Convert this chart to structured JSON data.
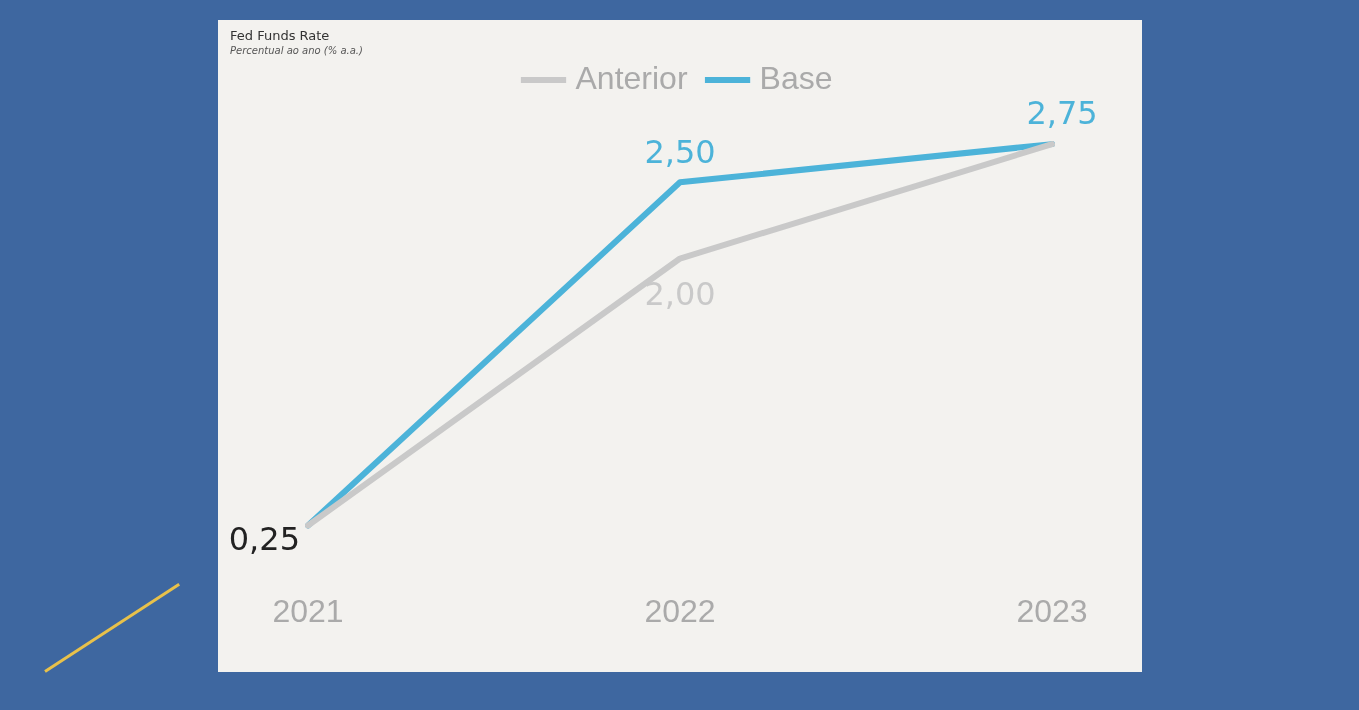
{
  "chart_data": {
    "type": "line",
    "title": "Fed Funds Rate",
    "subtitle": "Percentual ao ano (% a.a.)",
    "categories": [
      "2021",
      "2022",
      "2023"
    ],
    "series": [
      {
        "name": "Anterior",
        "color": "#c9c9c9",
        "values": [
          0.25,
          2.0,
          2.75
        ],
        "value_labels": [
          null,
          "2,00",
          null
        ]
      },
      {
        "name": "Base",
        "color": "#4cb3d9",
        "values": [
          0.25,
          2.5,
          2.75
        ],
        "value_labels": [
          null,
          "2,50",
          "2,75"
        ]
      }
    ],
    "annotations": [
      {
        "text": "0,25",
        "x": "2021",
        "y": 0.25
      }
    ],
    "legend": "top",
    "grid": false,
    "tick_labels": "x",
    "line_style": "solid"
  }
}
